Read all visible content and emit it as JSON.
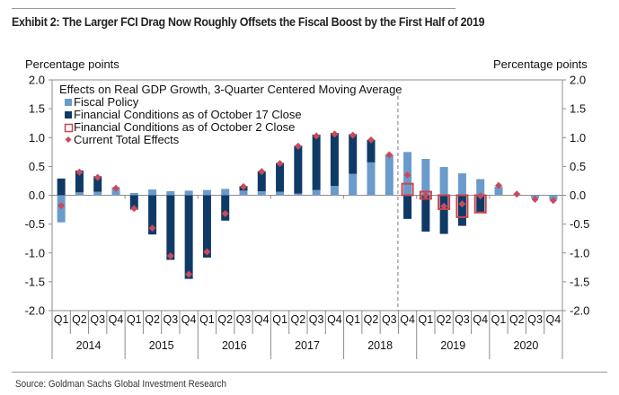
{
  "header": {
    "title": "Exhibit 2: The Larger FCI Drag Now Roughly Offsets the Fiscal Boost by the First Half of 2019",
    "left_unit": "Percentage points",
    "right_unit": "Percentage points"
  },
  "footer": {
    "source": "Source: Goldman Sachs Global Investment Research"
  },
  "chart_data": {
    "type": "bar",
    "title": "Effects on Real GDP Growth, 3-Quarter Centered Moving Average",
    "ylabel_left": "Percentage points",
    "ylabel_right": "Percentage points",
    "ylim": [
      -2.0,
      2.0
    ],
    "yticks": [
      "2.0",
      "1.5",
      "1.0",
      "0.5",
      "0.0",
      "-0.5",
      "-1.0",
      "-1.5",
      "-2.0"
    ],
    "ytick_values": [
      2.0,
      1.5,
      1.0,
      0.5,
      0.0,
      -0.5,
      -1.0,
      -1.5,
      -2.0
    ],
    "grid": false,
    "legend_position": "top-left",
    "stacked": true,
    "categories": [
      "Q1",
      "Q2",
      "Q3",
      "Q4",
      "Q1",
      "Q2",
      "Q3",
      "Q4",
      "Q1",
      "Q2",
      "Q3",
      "Q4",
      "Q1",
      "Q2",
      "Q3",
      "Q4",
      "Q1",
      "Q2",
      "Q3",
      "Q4",
      "Q1",
      "Q2",
      "Q3",
      "Q4",
      "Q1",
      "Q2",
      "Q3",
      "Q4"
    ],
    "years": [
      "2014",
      "2015",
      "2016",
      "2017",
      "2018",
      "2019",
      "2020"
    ],
    "forecast_divider_after_index": 18,
    "series": [
      {
        "name": "Fiscal Policy",
        "kind": "bar",
        "color": "#6b9bcb",
        "values": [
          -0.47,
          0.05,
          0.06,
          0.14,
          0.04,
          0.1,
          0.07,
          0.08,
          0.09,
          0.11,
          0.08,
          0.07,
          0.06,
          0.03,
          0.09,
          0.16,
          0.37,
          0.57,
          0.69,
          0.75,
          0.63,
          0.49,
          0.38,
          0.28,
          0.15,
          0.01,
          -0.05,
          -0.08
        ]
      },
      {
        "name": "Financial Conditions as of October 17 Close",
        "kind": "bar",
        "color": "#0f3a66",
        "values": [
          0.29,
          0.38,
          0.27,
          0.0,
          -0.25,
          -0.68,
          -1.12,
          -1.45,
          -1.08,
          -0.44,
          0.08,
          0.35,
          0.5,
          0.83,
          0.96,
          0.92,
          0.69,
          0.39,
          0.01,
          -0.41,
          -0.63,
          -0.67,
          -0.53,
          -0.29,
          0.0,
          0.0,
          0.0,
          0.0
        ]
      },
      {
        "name": "Financial Conditions as of October 2 Close",
        "kind": "outline-bar",
        "color": "#c9444f",
        "values": [
          null,
          null,
          null,
          null,
          null,
          null,
          null,
          null,
          null,
          null,
          null,
          null,
          null,
          null,
          null,
          null,
          null,
          null,
          null,
          0.2,
          0.0,
          -0.24,
          -0.38,
          -0.3,
          null,
          null,
          null,
          null
        ]
      },
      {
        "name": "Current Total Effects",
        "kind": "marker",
        "color": "#c94b5a",
        "values": [
          -0.18,
          0.4,
          0.31,
          0.12,
          -0.23,
          -0.57,
          -1.05,
          -1.37,
          -0.98,
          -0.32,
          0.15,
          0.41,
          0.55,
          0.85,
          1.03,
          1.06,
          1.04,
          0.96,
          0.7,
          0.35,
          0.0,
          -0.19,
          -0.15,
          -0.01,
          0.17,
          0.02,
          -0.07,
          -0.09
        ]
      }
    ]
  }
}
